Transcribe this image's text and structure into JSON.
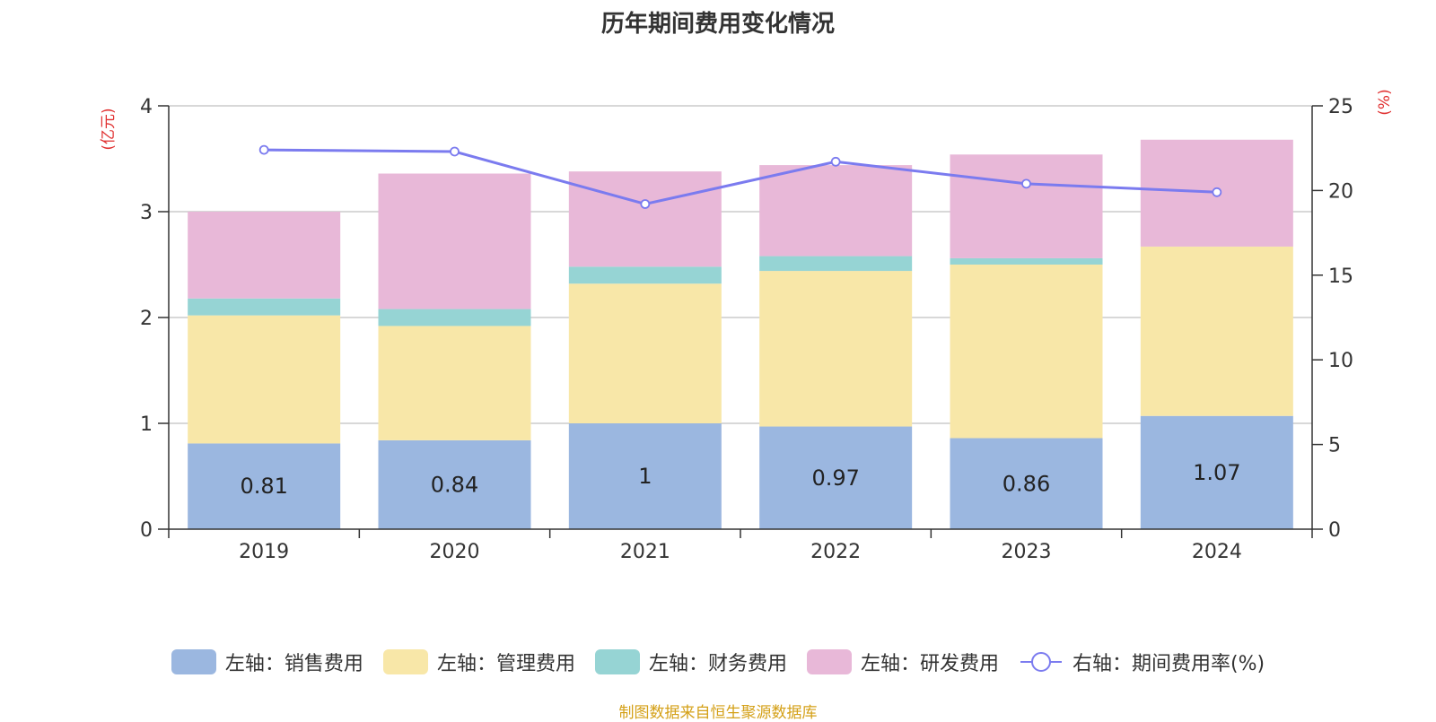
{
  "title": "历年期间费用变化情况",
  "source": "制图数据来自恒生聚源数据库",
  "chart_data": {
    "type": "bar",
    "stacked": true,
    "categories": [
      "2019",
      "2020",
      "2021",
      "2022",
      "2023",
      "2024"
    ],
    "y_left": {
      "label": "(亿元)",
      "ylim": [
        0,
        4
      ],
      "ticks": [
        "0",
        "1",
        "2",
        "3",
        "4"
      ]
    },
    "y_right": {
      "label": "(%)",
      "ylim": [
        0,
        25
      ],
      "ticks": [
        "0",
        "5",
        "10",
        "15",
        "20",
        "25"
      ]
    },
    "grid": true,
    "legend_position": "bottom",
    "series": [
      {
        "name": "左轴：销售费用",
        "axis": "left",
        "color": "#9bb7e0",
        "values": [
          0.81,
          0.84,
          1,
          0.97,
          0.86,
          1.07
        ],
        "labels": [
          "0.81",
          "0.84",
          "1",
          "0.97",
          "0.86",
          "1.07"
        ]
      },
      {
        "name": "左轴：管理费用",
        "axis": "left",
        "color": "#f8e7a8",
        "values": [
          1.21,
          1.08,
          1.32,
          1.47,
          1.64,
          1.6
        ]
      },
      {
        "name": "左轴：财务费用",
        "axis": "left",
        "color": "#96d4d4",
        "values": [
          0.16,
          0.16,
          0.16,
          0.14,
          0.06,
          0.0
        ]
      },
      {
        "name": "左轴：研发费用",
        "axis": "left",
        "color": "#e8b8d8",
        "values": [
          0.82,
          1.28,
          0.9,
          0.86,
          0.98,
          1.01
        ]
      },
      {
        "name": "右轴：期间费用率(%)",
        "axis": "right",
        "type": "line",
        "color": "#7b7bef",
        "values": [
          22.4,
          22.3,
          19.2,
          21.7,
          20.4,
          19.9
        ]
      }
    ]
  }
}
